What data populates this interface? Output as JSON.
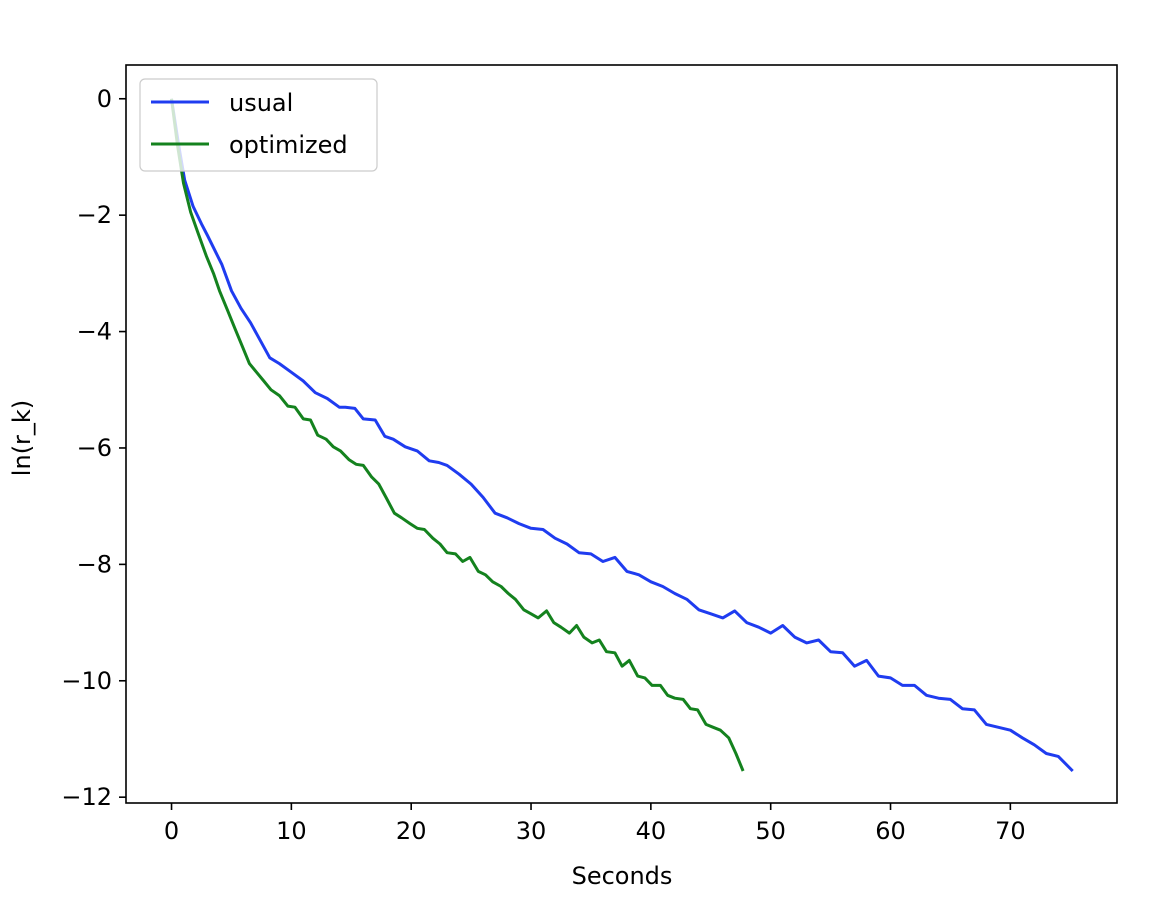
{
  "chart_data": {
    "type": "line",
    "title": "",
    "xlabel": "Seconds",
    "ylabel": "ln(r_k)",
    "xlim": [
      -3.8,
      78.9
    ],
    "ylim": [
      -12.1,
      0.58
    ],
    "xticks": [
      0,
      10,
      20,
      30,
      40,
      50,
      60,
      70
    ],
    "yticks": [
      0,
      -2,
      -4,
      -6,
      -8,
      -10,
      -12
    ],
    "xtick_labels": [
      "0",
      "10",
      "20",
      "30",
      "40",
      "50",
      "60",
      "70"
    ],
    "ytick_labels": [
      "0",
      "−2",
      "−4",
      "−6",
      "−8",
      "−10",
      "−12"
    ],
    "grid": false,
    "legend_position": "top-left",
    "series": [
      {
        "name": "usual",
        "color": "#1f3cf0",
        "x": [
          0.0,
          0.6,
          1.1,
          1.8,
          2.5,
          3.0,
          3.6,
          4.2,
          5.0,
          5.8,
          6.6,
          7.4,
          8.2,
          9.0,
          10.0,
          11.0,
          12.0,
          13.0,
          14.0,
          14.5,
          15.3,
          16.0,
          17.0,
          17.8,
          18.5,
          19.5,
          20.5,
          21.5,
          22.3,
          23.0,
          24.0,
          25.0,
          26.0,
          27.0,
          28.0,
          29.0,
          30.0,
          31.0,
          32.0,
          33.0,
          34.0,
          35.0,
          36.0,
          37.0,
          38.0,
          39.0,
          40.0,
          41.0,
          42.0,
          43.0,
          44.0,
          45.0,
          46.0,
          47.0,
          48.0,
          49.0,
          50.0,
          51.0,
          52.0,
          53.0,
          54.0,
          55.0,
          56.0,
          57.0,
          58.0,
          59.0,
          60.0,
          61.0,
          62.0,
          63.0,
          64.0,
          65.0,
          66.0,
          67.0,
          68.0,
          69.0,
          70.0,
          71.0,
          72.0,
          73.0,
          74.0,
          75.2
        ],
        "y": [
          0.0,
          -0.8,
          -1.4,
          -1.85,
          -2.15,
          -2.35,
          -2.6,
          -2.85,
          -3.3,
          -3.6,
          -3.85,
          -4.15,
          -4.45,
          -4.55,
          -4.7,
          -4.85,
          -5.05,
          -5.15,
          -5.3,
          -5.3,
          -5.32,
          -5.5,
          -5.52,
          -5.8,
          -5.85,
          -5.98,
          -6.05,
          -6.22,
          -6.25,
          -6.3,
          -6.45,
          -6.62,
          -6.85,
          -7.12,
          -7.2,
          -7.3,
          -7.38,
          -7.4,
          -7.55,
          -7.65,
          -7.8,
          -7.82,
          -7.95,
          -7.88,
          -8.12,
          -8.18,
          -8.3,
          -8.38,
          -8.5,
          -8.6,
          -8.78,
          -8.85,
          -8.92,
          -8.8,
          -9.0,
          -9.08,
          -9.18,
          -9.05,
          -9.25,
          -9.35,
          -9.3,
          -9.5,
          -9.52,
          -9.75,
          -9.65,
          -9.92,
          -9.95,
          -10.08,
          -10.08,
          -10.25,
          -10.3,
          -10.32,
          -10.48,
          -10.5,
          -10.75,
          -10.8,
          -10.85,
          -10.98,
          -11.1,
          -11.25,
          -11.3,
          -11.55
        ]
      },
      {
        "name": "optimized",
        "color": "#14821e",
        "x": [
          0.0,
          0.5,
          1.0,
          1.6,
          2.2,
          2.9,
          3.5,
          4.0,
          4.7,
          5.3,
          5.9,
          6.5,
          7.1,
          7.7,
          8.3,
          9.0,
          9.7,
          10.3,
          11.0,
          11.6,
          12.2,
          12.9,
          13.5,
          14.1,
          14.8,
          15.4,
          16.0,
          16.7,
          17.3,
          17.9,
          18.6,
          19.2,
          19.9,
          20.5,
          21.1,
          21.8,
          22.4,
          23.0,
          23.7,
          24.3,
          24.9,
          25.6,
          26.2,
          26.8,
          27.5,
          28.1,
          28.7,
          29.4,
          30.0,
          30.6,
          31.3,
          31.9,
          32.5,
          33.2,
          33.8,
          34.4,
          35.1,
          35.7,
          36.3,
          37.0,
          37.6,
          38.2,
          38.9,
          39.5,
          40.1,
          40.8,
          41.4,
          42.0,
          42.7,
          43.3,
          43.9,
          44.6,
          45.2,
          45.8,
          46.5,
          47.1,
          47.7
        ],
        "y": [
          0.0,
          -0.8,
          -1.45,
          -1.95,
          -2.3,
          -2.7,
          -3.0,
          -3.3,
          -3.65,
          -3.95,
          -4.25,
          -4.55,
          -4.7,
          -4.85,
          -5.0,
          -5.1,
          -5.28,
          -5.3,
          -5.5,
          -5.52,
          -5.78,
          -5.85,
          -5.98,
          -6.05,
          -6.2,
          -6.28,
          -6.3,
          -6.5,
          -6.62,
          -6.85,
          -7.12,
          -7.2,
          -7.3,
          -7.38,
          -7.4,
          -7.55,
          -7.65,
          -7.8,
          -7.82,
          -7.95,
          -7.88,
          -8.12,
          -8.18,
          -8.3,
          -8.38,
          -8.5,
          -8.6,
          -8.78,
          -8.85,
          -8.92,
          -8.8,
          -9.0,
          -9.08,
          -9.18,
          -9.05,
          -9.25,
          -9.35,
          -9.3,
          -9.5,
          -9.52,
          -9.75,
          -9.65,
          -9.92,
          -9.95,
          -10.08,
          -10.08,
          -10.25,
          -10.3,
          -10.32,
          -10.48,
          -10.5,
          -10.75,
          -10.8,
          -10.85,
          -10.98,
          -11.25,
          -11.55
        ]
      }
    ]
  }
}
